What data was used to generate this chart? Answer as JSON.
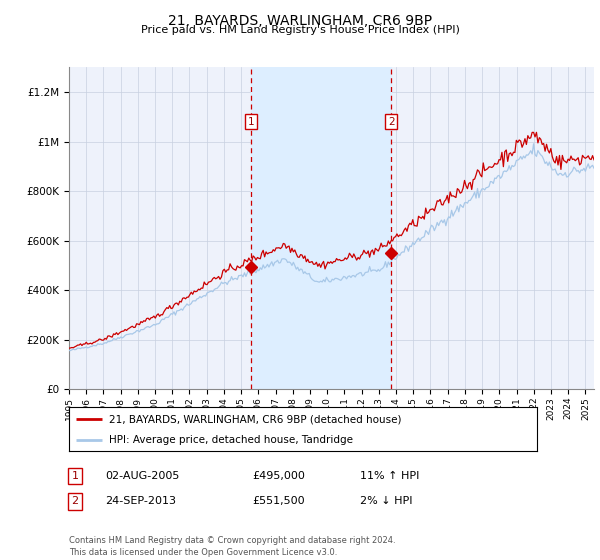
{
  "title": "21, BAYARDS, WARLINGHAM, CR6 9BP",
  "subtitle": "Price paid vs. HM Land Registry's House Price Index (HPI)",
  "xlim_start": 1995.0,
  "xlim_end": 2025.5,
  "ylim_bottom": 0,
  "ylim_top": 1300000,
  "yticks": [
    0,
    200000,
    400000,
    600000,
    800000,
    1000000,
    1200000
  ],
  "ytick_labels": [
    "£0",
    "£200K",
    "£400K",
    "£600K",
    "£800K",
    "£1M",
    "£1.2M"
  ],
  "hpi_line_color": "#a8c8e8",
  "price_line_color": "#cc0000",
  "marker_color": "#cc0000",
  "dashed_line_color": "#cc0000",
  "shade_color": "#ddeeff",
  "transaction1_x": 2005.583,
  "transaction1_y": 495000,
  "transaction2_x": 2013.728,
  "transaction2_y": 551500,
  "legend_label1": "21, BAYARDS, WARLINGHAM, CR6 9BP (detached house)",
  "legend_label2": "HPI: Average price, detached house, Tandridge",
  "table_row1": [
    "1",
    "02-AUG-2005",
    "£495,000",
    "11% ↑ HPI"
  ],
  "table_row2": [
    "2",
    "24-SEP-2013",
    "£551,500",
    "2% ↓ HPI"
  ],
  "footer": "Contains HM Land Registry data © Crown copyright and database right 2024.\nThis data is licensed under the Open Government Licence v3.0.",
  "background_color": "#ffffff",
  "plot_bg_color": "#eef2fb",
  "grid_color": "#c8d0e0"
}
